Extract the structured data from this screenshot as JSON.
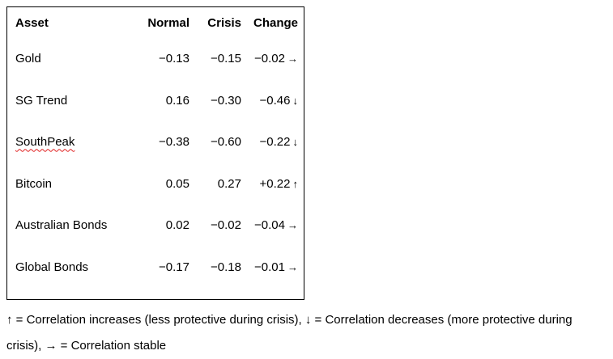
{
  "table": {
    "headers": {
      "asset": "Asset",
      "normal": "Normal",
      "crisis": "Crisis",
      "change": "Change"
    },
    "rows": [
      {
        "asset": "Gold",
        "normal": "−0.13",
        "crisis": "−0.15",
        "change": "−0.02",
        "arrow": "→"
      },
      {
        "asset": "SG Trend",
        "normal": "0.16",
        "crisis": "−0.30",
        "change": "−0.46",
        "arrow": "↓"
      },
      {
        "asset": "SouthPeak",
        "normal": "−0.38",
        "crisis": "−0.60",
        "change": "−0.22",
        "arrow": "↓"
      },
      {
        "asset": "Bitcoin",
        "normal": "0.05",
        "crisis": "0.27",
        "change": "+0.22",
        "arrow": "↑"
      },
      {
        "asset": "Australian Bonds",
        "normal": "0.02",
        "crisis": "−0.02",
        "change": "−0.04",
        "arrow": "→"
      },
      {
        "asset": "Global Bonds",
        "normal": "−0.17",
        "crisis": "−0.18",
        "change": "−0.01",
        "arrow": "→"
      }
    ]
  },
  "footnote": {
    "text": "↑ = Correlation increases (less protective during crisis), ↓ = Correlation decreases (more protective during crisis), → = Correlation stable"
  }
}
